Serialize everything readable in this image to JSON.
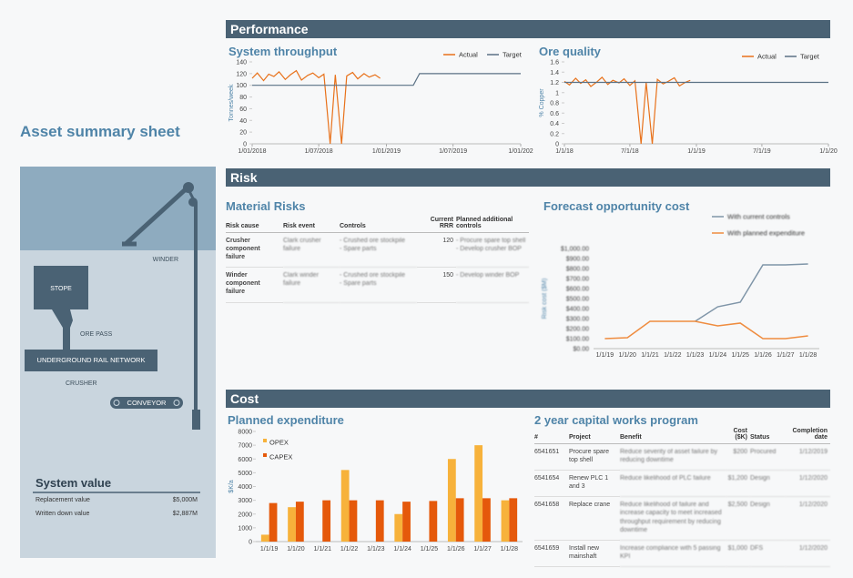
{
  "title": "Asset summary sheet",
  "sections": {
    "performance": "Performance",
    "risk": "Risk",
    "cost": "Cost"
  },
  "diagram": {
    "winder": "WINDER",
    "stope": "STOPE",
    "ore_pass": "ORE PASS",
    "rail": "UNDERGROUND RAIL NETWORK",
    "crusher": "CRUSHER",
    "conveyor": "CONVEYOR"
  },
  "system_value": {
    "title": "System value",
    "rows": [
      [
        "Replacement value",
        "$5,000M"
      ],
      [
        "Written down value",
        "$2,887M"
      ]
    ]
  },
  "risk_table": {
    "title": "Material Risks",
    "columns": [
      "Risk cause",
      "Risk event",
      "Controls",
      "Current RRR",
      "Planned additional controls"
    ],
    "rows": [
      [
        "Crusher component failure",
        "Clark crusher failure",
        [
          "Crushed ore stockpile",
          "Spare parts"
        ],
        "120",
        [
          "Procure spare top shell",
          "Develop crusher BOP"
        ]
      ],
      [
        "Winder component failure",
        "Clark winder failure",
        [
          "Crushed ore stockpile",
          "Spare parts"
        ],
        "150",
        [
          "Develop winder BOP"
        ]
      ]
    ]
  },
  "capital_table": {
    "title": "2 year capital works program",
    "columns": [
      "#",
      "Project",
      "Benefit",
      "Cost ($K)",
      "Status",
      "Completion date"
    ],
    "rows": [
      [
        "6541651",
        "Procure spare top shell",
        "Reduce severity of asset failure by reducing downtime",
        "$200",
        "Procured",
        "1/12/2019"
      ],
      [
        "6541654",
        "Renew PLC 1 and 3",
        "Reduce likelihood of PLC failure",
        "$1,200",
        "Design",
        "1/12/2020"
      ],
      [
        "6541658",
        "Replace crane",
        "Reduce likelihood of failure and increase capacity to meet increased throughput requirement by reducing downtime",
        "$2,500",
        "Design",
        "1/12/2020"
      ],
      [
        "6541659",
        "Install new mainshaft",
        "Increase compliance with 5 passing KPI",
        "$1,000",
        "DFS",
        "1/12/2020"
      ]
    ]
  },
  "chart_data": [
    {
      "type": "line",
      "title": "System throughput",
      "y_label": "Tonnes/week",
      "x": [
        "2018-01-01",
        "2018-01-15",
        "2018-02-01",
        "2018-02-15",
        "2018-03-01",
        "2018-03-15",
        "2018-04-01",
        "2018-04-15",
        "2018-05-01",
        "2018-05-15",
        "2018-06-01",
        "2018-06-15",
        "2018-07-01",
        "2018-07-15",
        "2018-08-01",
        "2018-08-15",
        "2018-09-01",
        "2018-09-15",
        "2018-10-01",
        "2018-10-15",
        "2018-11-01",
        "2018-11-15",
        "2018-12-01",
        "2018-12-15",
        "2019-01-01",
        "2019-01-15",
        "2019-02-01",
        "2019-02-15",
        "2019-03-01",
        "2019-03-15",
        "2019-04-01",
        "2019-04-15",
        "2019-05-01",
        "2019-05-15",
        "2019-06-01",
        "2019-06-15",
        "2019-07-01",
        "2019-07-15",
        "2019-08-01",
        "2019-08-15",
        "2019-09-01",
        "2019-09-15",
        "2019-10-01",
        "2019-10-15",
        "2019-11-01",
        "2019-11-15",
        "2019-12-01",
        "2019-12-15",
        "2020-01-01"
      ],
      "xlim": [
        "2018-01-01",
        "2020-01-01"
      ],
      "xticks": [
        {
          "value": "2018-01-01",
          "label": "1/01/2018"
        },
        {
          "value": "2018-07-01",
          "label": "1/07/2018"
        },
        {
          "value": "2019-01-01",
          "label": "1/01/2019"
        },
        {
          "value": "2019-07-01",
          "label": "1/07/2019"
        },
        {
          "value": "2020-01-01",
          "label": "1/01/202"
        }
      ],
      "ylim": [
        0,
        140
      ],
      "yticks": [
        0,
        20,
        40,
        60,
        80,
        100,
        120,
        140
      ],
      "legend": "top-right",
      "series": [
        {
          "name": "Actual",
          "color": "#e8711a",
          "values": [
            112,
            121,
            108,
            119,
            115,
            123,
            110,
            118,
            125,
            109,
            117,
            121,
            113,
            119,
            0,
            118,
            0,
            116,
            122,
            111,
            120,
            114,
            118,
            112,
            null,
            null,
            null,
            null,
            null,
            null,
            null,
            null,
            null,
            null,
            null,
            null,
            null,
            null,
            null,
            null,
            null,
            null,
            null,
            null,
            null,
            null,
            null,
            null,
            null
          ]
        },
        {
          "name": "Target",
          "color": "#5a7185",
          "values": [
            100,
            100,
            100,
            100,
            100,
            100,
            100,
            100,
            100,
            100,
            100,
            100,
            100,
            100,
            100,
            100,
            100,
            100,
            100,
            100,
            100,
            100,
            100,
            100,
            100,
            100,
            100,
            100,
            100,
            100,
            120,
            120,
            120,
            120,
            120,
            120,
            120,
            120,
            120,
            120,
            120,
            120,
            120,
            120,
            120,
            120,
            120,
            120,
            120
          ]
        }
      ]
    },
    {
      "type": "line",
      "title": "Ore quality",
      "y_label": "% Copper",
      "x": [
        "2018-01-01",
        "2018-01-15",
        "2018-02-01",
        "2018-02-15",
        "2018-03-01",
        "2018-03-15",
        "2018-04-01",
        "2018-04-15",
        "2018-05-01",
        "2018-05-15",
        "2018-06-01",
        "2018-06-15",
        "2018-07-01",
        "2018-07-15",
        "2018-08-01",
        "2018-08-15",
        "2018-09-01",
        "2018-09-15",
        "2018-10-01",
        "2018-10-15",
        "2018-11-01",
        "2018-11-15",
        "2018-12-01",
        "2018-12-15",
        "2019-01-01",
        "2019-01-15",
        "2019-02-01",
        "2019-02-15",
        "2019-03-01",
        "2019-03-15",
        "2019-04-01",
        "2019-04-15",
        "2019-05-01",
        "2019-05-15",
        "2019-06-01",
        "2019-06-15",
        "2019-07-01",
        "2019-07-15",
        "2019-08-01",
        "2019-08-15",
        "2019-09-01",
        "2019-09-15",
        "2019-10-01",
        "2019-10-15",
        "2019-11-01",
        "2019-11-15",
        "2019-12-01",
        "2019-12-15",
        "2020-01-01"
      ],
      "xlim": [
        "2018-01-01",
        "2020-01-01"
      ],
      "xticks": [
        {
          "value": "2018-01-01",
          "label": "1/1/18"
        },
        {
          "value": "2018-07-01",
          "label": "7/1/18"
        },
        {
          "value": "2019-01-01",
          "label": "1/1/19"
        },
        {
          "value": "2019-07-01",
          "label": "7/1/19"
        },
        {
          "value": "2020-01-01",
          "label": "1/1/20"
        }
      ],
      "ylim": [
        0,
        1.6
      ],
      "yticks": [
        0,
        0.2,
        0.4,
        0.6,
        0.8,
        1,
        1.2,
        1.4,
        1.6
      ],
      "legend": "top-right",
      "series": [
        {
          "name": "Actual",
          "color": "#e8711a",
          "values": [
            1.22,
            1.15,
            1.28,
            1.18,
            1.25,
            1.12,
            1.21,
            1.3,
            1.16,
            1.24,
            1.19,
            1.27,
            1.14,
            1.23,
            0,
            1.2,
            0,
            1.26,
            1.17,
            1.22,
            1.29,
            1.13,
            1.2,
            1.24,
            null,
            null,
            null,
            null,
            null,
            null,
            null,
            null,
            null,
            null,
            null,
            null,
            null,
            null,
            null,
            null,
            null,
            null,
            null,
            null,
            null,
            null,
            null,
            null,
            null
          ]
        },
        {
          "name": "Target",
          "color": "#5a7185",
          "values": [
            1.2,
            1.2,
            1.2,
            1.2,
            1.2,
            1.2,
            1.2,
            1.2,
            1.2,
            1.2,
            1.2,
            1.2,
            1.2,
            1.2,
            1.2,
            1.2,
            1.2,
            1.2,
            1.2,
            1.2,
            1.2,
            1.2,
            1.2,
            1.2,
            1.2,
            1.2,
            1.2,
            1.2,
            1.2,
            1.2,
            1.2,
            1.2,
            1.2,
            1.2,
            1.2,
            1.2,
            1.2,
            1.2,
            1.2,
            1.2,
            1.2,
            1.2,
            1.2,
            1.2,
            1.2,
            1.2,
            1.2,
            1.2,
            1.2
          ]
        }
      ]
    },
    {
      "type": "line",
      "title": "Forecast opportunity cost",
      "y_label": "Risk cost ($M)",
      "categories": [
        "1/1/19",
        "1/1/20",
        "1/1/21",
        "1/1/22",
        "1/1/23",
        "1/1/24",
        "1/1/25",
        "1/1/26",
        "1/1/27",
        "1/1/28"
      ],
      "ylim": [
        0,
        1000
      ],
      "yticks": [
        {
          "value": 0,
          "label": "$0.00"
        },
        {
          "value": 100,
          "label": "$100.00"
        },
        {
          "value": 200,
          "label": "$200.00"
        },
        {
          "value": 300,
          "label": "$300.00"
        },
        {
          "value": 400,
          "label": "$400.00"
        },
        {
          "value": 500,
          "label": "$500.00"
        },
        {
          "value": 600,
          "label": "$600.00"
        },
        {
          "value": 700,
          "label": "$700.00"
        },
        {
          "value": 800,
          "label": "$800.00"
        },
        {
          "value": 900,
          "label": "$900.00"
        },
        {
          "value": 1000,
          "label": "$1,000.00"
        }
      ],
      "legend": "top-right",
      "series": [
        {
          "name": "With current controls",
          "color": "#7f95a8",
          "values": [
            null,
            null,
            null,
            null,
            273,
            418,
            464,
            836,
            836,
            845
          ]
        },
        {
          "name": "With planned expenditure",
          "color": "#ef8c3f",
          "values": [
            100,
            109,
            273,
            273,
            273,
            227,
            255,
            100,
            100,
            127
          ]
        }
      ]
    },
    {
      "type": "bar",
      "title": "Planned expenditure",
      "y_label": "$K/a",
      "categories": [
        "1/1/19",
        "1/1/20",
        "1/1/21",
        "1/1/22",
        "1/1/23",
        "1/1/24",
        "1/1/25",
        "1/1/26",
        "1/1/27",
        "1/1/28"
      ],
      "ylim": [
        0,
        8000
      ],
      "yticks": [
        0,
        1000,
        2000,
        3000,
        4000,
        5000,
        6000,
        7000,
        8000
      ],
      "legend": "top-left",
      "series": [
        {
          "name": "OPEX",
          "color": "#f7b23b",
          "values": [
            500,
            2500,
            0,
            5200,
            0,
            2000,
            0,
            6000,
            7000,
            3000
          ]
        },
        {
          "name": "CAPEX",
          "color": "#e5590b",
          "values": [
            2800,
            2900,
            3000,
            3000,
            3000,
            2900,
            2950,
            3150,
            3150,
            3150
          ]
        }
      ]
    }
  ]
}
